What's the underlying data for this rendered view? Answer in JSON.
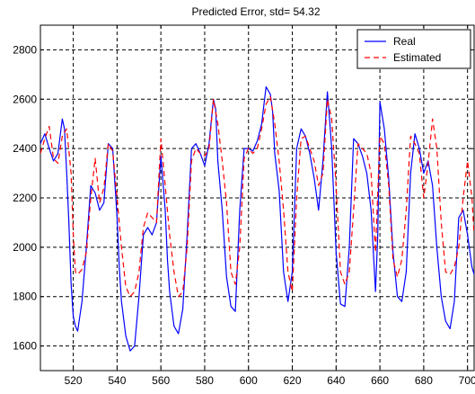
{
  "chart_data": {
    "type": "line",
    "title": "Predicted Error, std= 54.32",
    "xlabel": "",
    "ylabel": "",
    "xlim": [
      505,
      703
    ],
    "ylim": [
      1500,
      2900
    ],
    "grid": true,
    "legend_position": "top-right",
    "x_ticks": [
      520,
      540,
      560,
      580,
      600,
      620,
      640,
      660,
      680,
      700
    ],
    "x_tick_labels": [
      "520",
      "540",
      "560",
      "580",
      "600",
      "620",
      "640",
      "660",
      "680",
      "700"
    ],
    "y_ticks": [
      1600,
      1800,
      2000,
      2200,
      2400,
      2600,
      2800
    ],
    "y_tick_labels": [
      "1600",
      "1800",
      "2000",
      "2200",
      "2400",
      "2600",
      "2800"
    ],
    "series": [
      {
        "name": "Real",
        "color": "#0000ff",
        "style": "solid",
        "x": [
          505,
          507,
          509,
          511,
          513,
          515,
          516,
          517,
          518,
          519,
          520,
          521,
          522,
          524,
          526,
          528,
          530,
          532,
          534,
          536,
          538,
          540,
          541,
          542,
          544,
          546,
          548,
          550,
          552,
          554,
          556,
          558,
          560,
          562,
          563,
          564,
          566,
          568,
          570,
          572,
          574,
          576,
          578,
          580,
          582,
          584,
          585,
          586,
          588,
          590,
          592,
          594,
          596,
          598,
          600,
          602,
          604,
          606,
          608,
          610,
          611,
          612,
          614,
          616,
          618,
          620,
          622,
          624,
          626,
          628,
          630,
          632,
          634,
          636,
          637,
          638,
          640,
          642,
          644,
          646,
          648,
          650,
          652,
          654,
          656,
          658,
          659,
          660,
          662,
          664,
          666,
          668,
          670,
          672,
          674,
          676,
          678,
          680,
          682,
          684,
          686,
          688,
          690,
          692,
          694,
          696,
          698,
          700,
          702,
          703
        ],
        "y": [
          2420,
          2460,
          2400,
          2350,
          2380,
          2520,
          2480,
          2300,
          2100,
          1850,
          1720,
          1680,
          1660,
          1780,
          2000,
          2250,
          2220,
          2150,
          2180,
          2420,
          2400,
          2120,
          1920,
          1780,
          1640,
          1580,
          1600,
          1800,
          2050,
          2080,
          2050,
          2100,
          2370,
          2150,
          1950,
          1820,
          1680,
          1650,
          1750,
          2050,
          2400,
          2420,
          2380,
          2330,
          2420,
          2600,
          2560,
          2350,
          2150,
          1880,
          1760,
          1740,
          2150,
          2400,
          2400,
          2390,
          2430,
          2500,
          2650,
          2620,
          2550,
          2380,
          2230,
          1900,
          1780,
          1900,
          2400,
          2480,
          2450,
          2380,
          2280,
          2150,
          2350,
          2630,
          2520,
          2400,
          1980,
          1770,
          1760,
          2000,
          2440,
          2420,
          2370,
          2300,
          2150,
          1820,
          2050,
          2590,
          2480,
          2280,
          1980,
          1800,
          1780,
          1900,
          2300,
          2460,
          2400,
          2300,
          2350,
          2250,
          2000,
          1800,
          1700,
          1670,
          1780,
          2120,
          2150,
          2050,
          1920,
          1890
        ]
      },
      {
        "name": "Estimated",
        "color": "#ff0000",
        "style": "dashed",
        "x": [
          505,
          507,
          509,
          511,
          513,
          515,
          517,
          519,
          520,
          521,
          522,
          524,
          526,
          528,
          530,
          532,
          534,
          536,
          538,
          540,
          542,
          544,
          546,
          548,
          550,
          552,
          554,
          556,
          558,
          560,
          562,
          564,
          566,
          568,
          570,
          572,
          574,
          576,
          578,
          580,
          582,
          584,
          586,
          588,
          590,
          592,
          594,
          596,
          598,
          600,
          602,
          604,
          606,
          608,
          610,
          612,
          614,
          616,
          618,
          620,
          622,
          624,
          626,
          628,
          630,
          632,
          634,
          636,
          638,
          640,
          642,
          644,
          646,
          648,
          650,
          652,
          654,
          656,
          658,
          660,
          662,
          664,
          666,
          668,
          670,
          672,
          674,
          676,
          678,
          680,
          682,
          684,
          686,
          688,
          690,
          692,
          694,
          696,
          698,
          700,
          702,
          703
        ],
        "y": [
          2380,
          2440,
          2490,
          2360,
          2340,
          2450,
          2480,
          2300,
          2050,
          1900,
          1890,
          1910,
          1980,
          2200,
          2360,
          2180,
          2240,
          2420,
          2390,
          2200,
          2000,
          1840,
          1800,
          1820,
          1900,
          2080,
          2140,
          2120,
          2100,
          2440,
          2250,
          2050,
          1900,
          1800,
          1820,
          2000,
          2350,
          2400,
          2380,
          2370,
          2400,
          2600,
          2500,
          2350,
          2180,
          1900,
          1850,
          2000,
          2360,
          2400,
          2380,
          2400,
          2480,
          2580,
          2610,
          2500,
          2350,
          2150,
          1900,
          1820,
          2200,
          2440,
          2450,
          2400,
          2350,
          2250,
          2300,
          2600,
          2520,
          2250,
          1900,
          1850,
          1900,
          2150,
          2420,
          2400,
          2380,
          2300,
          1980,
          2450,
          2420,
          2250,
          1950,
          1880,
          1950,
          2150,
          2450,
          2420,
          2380,
          2200,
          2340,
          2520,
          2400,
          2100,
          1900,
          1890,
          1920,
          2000,
          2200,
          2350,
          2200,
          2050
        ]
      }
    ]
  }
}
